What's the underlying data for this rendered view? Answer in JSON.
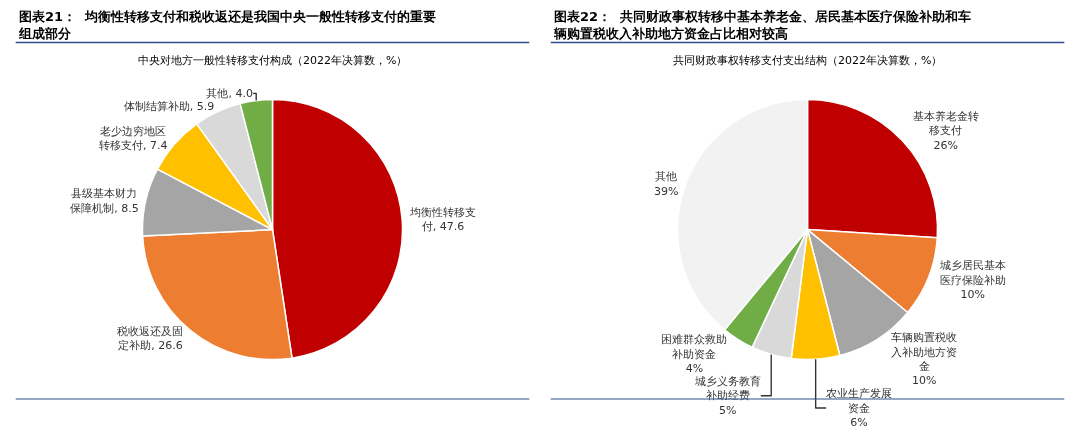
{
  "chart_data": [
    {
      "type": "pie",
      "title": "图表21：  均衡性转移支付和税收返还是我国中央一般性转移支付的重要组成部分",
      "subtitle": "中央对地方一般性转移支付构成（2022年决算数，%）",
      "categories": [
        "均衡性转移支付",
        "税收返还及固定补助",
        "县级基本财力保障机制",
        "老少边穷地区转移支付",
        "体制结算补助",
        "其他"
      ],
      "values": [
        47.6,
        26.6,
        8.5,
        7.4,
        5.9,
        4.0
      ],
      "value_labels": [
        "47.6",
        "26.6",
        "8.5",
        "7.4",
        "5.9",
        "4.0"
      ],
      "colors": [
        "#c00000",
        "#ed7d31",
        "#a5a5a5",
        "#ffc000",
        "#d9d9d9",
        "#70ad47"
      ]
    },
    {
      "type": "pie",
      "title": "图表22：  共同财政事权转移中基本养老金、居民基本医疗保险补助和车辆购置税收入补助地方资金占比相对较高",
      "subtitle": "共同财政事权转移支付支出结构（2022年决算数，%）",
      "categories": [
        "基本养老金转移支付",
        "城乡居民基本医疗保险补助",
        "车辆购置税收入补助地方资金",
        "农业生产发展资金",
        "城乡义务教育补助经费",
        "困难群众救助补助资金",
        "其他"
      ],
      "values": [
        26,
        10,
        10,
        6,
        5,
        4,
        39
      ],
      "value_labels": [
        "26%",
        "10%",
        "10%",
        "6%",
        "5%",
        "4%",
        "39%"
      ],
      "colors": [
        "#c00000",
        "#ed7d31",
        "#a5a5a5",
        "#ffc000",
        "#d9d9d9",
        "#70ad47",
        "#f2f2f2"
      ]
    }
  ]
}
